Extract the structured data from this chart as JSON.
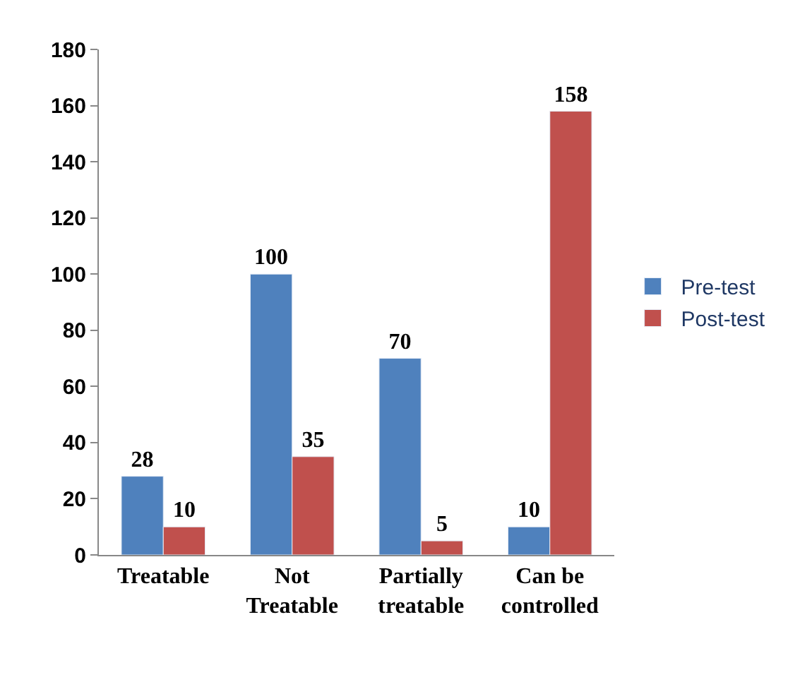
{
  "chart_data": {
    "type": "bar",
    "categories": [
      "Treatable",
      "Not Treatable",
      "Partially treatable",
      "Can be controlled"
    ],
    "series": [
      {
        "name": "Pre-test",
        "color": "#4f81bd",
        "values": [
          28,
          100,
          70,
          10
        ]
      },
      {
        "name": "Post-test",
        "color": "#c0504d",
        "values": [
          10,
          35,
          5,
          158
        ]
      }
    ],
    "ylim": [
      0,
      180
    ],
    "yticks": [
      0,
      20,
      40,
      60,
      80,
      100,
      120,
      140,
      160,
      180
    ],
    "legend": "right",
    "data_labels": true
  }
}
